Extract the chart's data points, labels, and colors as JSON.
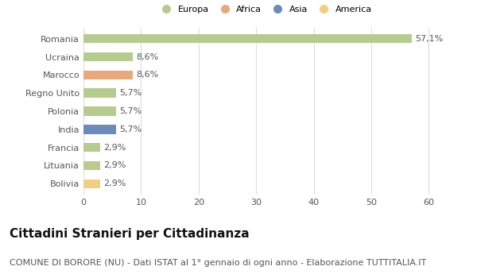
{
  "countries": [
    "Romania",
    "Ucraina",
    "Marocco",
    "Regno Unito",
    "Polonia",
    "India",
    "Francia",
    "Lituania",
    "Bolivia"
  ],
  "values": [
    57.1,
    8.6,
    8.6,
    5.7,
    5.7,
    5.7,
    2.9,
    2.9,
    2.9
  ],
  "labels": [
    "57,1%",
    "8,6%",
    "8,6%",
    "5,7%",
    "5,7%",
    "5,7%",
    "2,9%",
    "2,9%",
    "2,9%"
  ],
  "colors": [
    "#b5cc8e",
    "#b5cc8e",
    "#e8a87c",
    "#b5cc8e",
    "#b5cc8e",
    "#6b8cba",
    "#b5cc8e",
    "#b5cc8e",
    "#f0d080"
  ],
  "legend_labels": [
    "Europa",
    "Africa",
    "Asia",
    "America"
  ],
  "legend_colors": [
    "#b5cc8e",
    "#e8a87c",
    "#6b8cba",
    "#f0d080"
  ],
  "title": "Cittadini Stranieri per Cittadinanza",
  "subtitle": "COMUNE DI BORORE (NU) - Dati ISTAT al 1° gennaio di ogni anno - Elaborazione TUTTITALIA.IT",
  "xlim": [
    0,
    63
  ],
  "xticks": [
    0,
    10,
    20,
    30,
    40,
    50,
    60
  ],
  "background_color": "#ffffff",
  "grid_color": "#dddddd",
  "bar_height": 0.5,
  "title_fontsize": 11,
  "subtitle_fontsize": 8,
  "label_fontsize": 8,
  "tick_fontsize": 8,
  "legend_fontsize": 8
}
